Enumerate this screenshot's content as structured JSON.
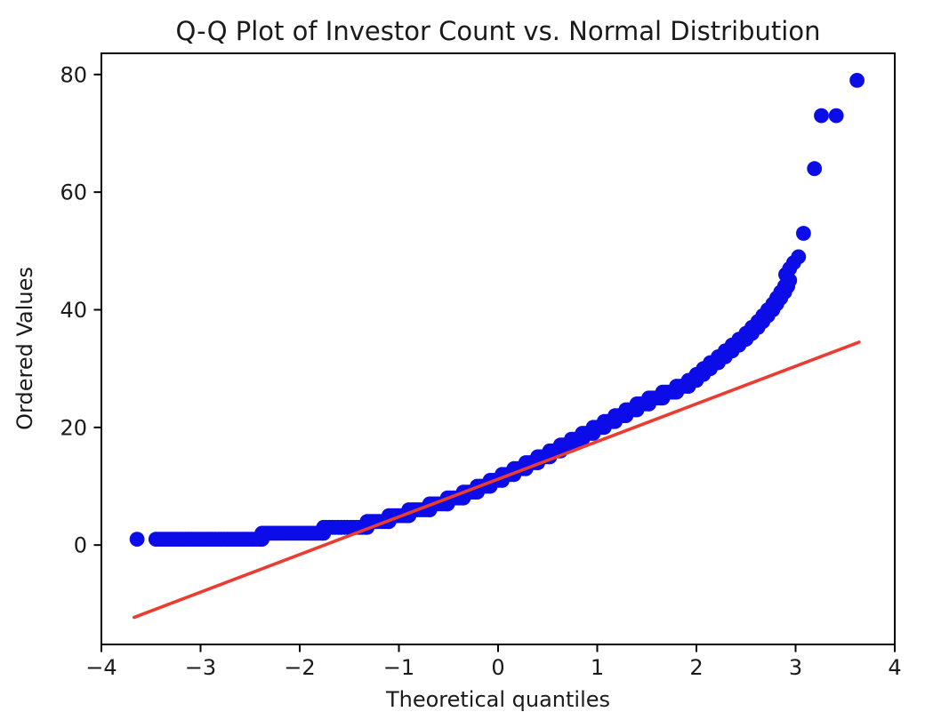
{
  "chart_data": {
    "type": "scatter",
    "title": "Q-Q Plot of Investor Count vs. Normal Distribution",
    "xlabel": "Theoretical quantiles",
    "ylabel": "Ordered Values",
    "xlim": [
      -4,
      4
    ],
    "ylim": [
      -16.9,
      83.6
    ],
    "xticks": [
      -4,
      -3,
      -2,
      -1,
      0,
      1,
      2,
      3,
      4
    ],
    "xtick_labels": [
      "−4",
      "−3",
      "−2",
      "−1",
      "0",
      "1",
      "2",
      "3",
      "4"
    ],
    "yticks": [
      0,
      20,
      40,
      60,
      80
    ],
    "ytick_labels": [
      "0",
      "20",
      "40",
      "60",
      "80"
    ],
    "grid": false,
    "legend": null,
    "marker_color": "#0b0ce8",
    "marker_radius": 8.4,
    "line_color": "#ea3c30",
    "line_width": 3.6,
    "axis_color": "#000000",
    "series": [
      {
        "name": "Investor Count sample quantiles (integer ordered value, theoretical-quantile start, end)",
        "type": "quantile_steps",
        "steps": [
          [
            1,
            -3.45,
            -2.38
          ],
          [
            2,
            -2.38,
            -1.76
          ],
          [
            3,
            -1.76,
            -1.32
          ],
          [
            4,
            -1.32,
            -1.1
          ],
          [
            5,
            -1.1,
            -0.9
          ],
          [
            6,
            -0.9,
            -0.69
          ],
          [
            7,
            -0.69,
            -0.51
          ],
          [
            8,
            -0.51,
            -0.35
          ],
          [
            9,
            -0.35,
            -0.21
          ],
          [
            10,
            -0.21,
            -0.08
          ],
          [
            11,
            -0.08,
            0.04
          ],
          [
            12,
            0.04,
            0.16
          ],
          [
            13,
            0.16,
            0.28
          ],
          [
            14,
            0.28,
            0.4
          ],
          [
            15,
            0.4,
            0.52
          ],
          [
            16,
            0.52,
            0.63
          ],
          [
            17,
            0.63,
            0.74
          ],
          [
            18,
            0.74,
            0.85
          ],
          [
            19,
            0.85,
            0.96
          ],
          [
            20,
            0.96,
            1.07
          ],
          [
            21,
            1.07,
            1.18
          ],
          [
            22,
            1.18,
            1.29
          ],
          [
            23,
            1.29,
            1.4
          ],
          [
            24,
            1.4,
            1.52
          ],
          [
            25,
            1.52,
            1.66
          ],
          [
            26,
            1.66,
            1.8
          ],
          [
            27,
            1.8,
            1.92
          ],
          [
            28,
            1.92,
            2.0
          ],
          [
            29,
            2.0,
            2.07
          ],
          [
            30,
            2.07,
            2.14
          ],
          [
            31,
            2.14,
            2.22
          ],
          [
            32,
            2.22,
            2.29
          ],
          [
            33,
            2.29,
            2.36
          ],
          [
            34,
            2.36,
            2.43
          ],
          [
            35,
            2.43,
            2.5
          ],
          [
            36,
            2.5,
            2.56
          ],
          [
            37,
            2.56,
            2.62
          ],
          [
            38,
            2.62,
            2.67
          ],
          [
            39,
            2.67,
            2.72
          ],
          [
            40,
            2.72,
            2.77
          ],
          [
            41,
            2.77,
            2.81
          ],
          [
            42,
            2.81,
            2.85
          ],
          [
            43,
            2.85,
            2.89
          ],
          [
            44,
            2.89,
            2.92
          ],
          [
            45,
            2.92,
            2.94
          ]
        ]
      },
      {
        "name": "isolated points (theoretical quantile, ordered value)",
        "type": "points",
        "points": [
          [
            -3.64,
            1
          ],
          [
            2.9,
            46
          ],
          [
            2.94,
            47
          ],
          [
            2.98,
            48
          ],
          [
            3.03,
            49
          ],
          [
            3.08,
            53
          ],
          [
            3.19,
            64
          ],
          [
            3.26,
            73
          ],
          [
            3.41,
            73
          ],
          [
            3.62,
            79
          ]
        ]
      }
    ],
    "fit_line": {
      "x1": -3.67,
      "y1": -12.3,
      "x2": 3.64,
      "y2": 34.5,
      "slope": 6.4,
      "intercept": 11.2
    }
  }
}
